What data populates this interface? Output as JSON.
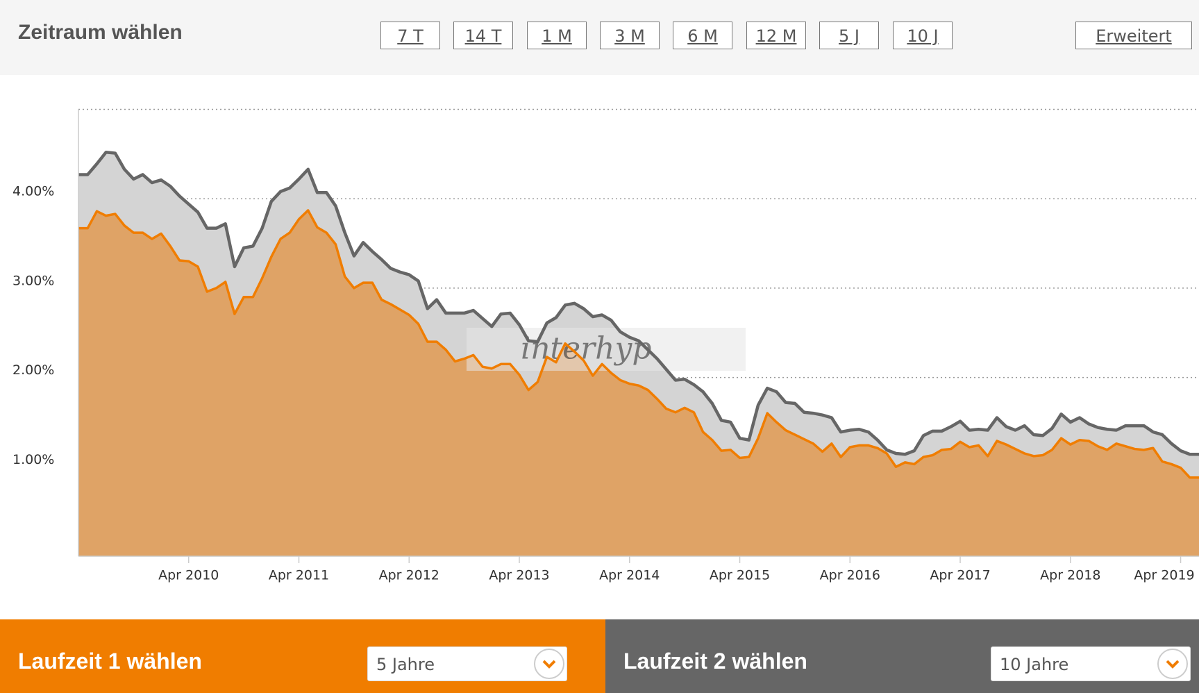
{
  "header": {
    "title": "Zeitraum wählen",
    "buttons": [
      "7 T",
      "14 T",
      "1 M",
      "3 M",
      "6 M",
      "12 M",
      "5 J",
      "10 J"
    ],
    "advanced": "Erweitert"
  },
  "chart_data": {
    "type": "area",
    "watermark": "interhyp",
    "x": [
      null,
      null,
      null,
      null,
      null,
      null,
      null,
      null,
      null,
      null,
      null,
      null,
      "Apr 2010",
      null,
      null,
      null,
      null,
      null,
      null,
      null,
      null,
      null,
      null,
      null,
      "Apr 2011",
      null,
      null,
      null,
      null,
      null,
      null,
      null,
      null,
      null,
      null,
      null,
      "Apr 2012",
      null,
      null,
      null,
      null,
      null,
      null,
      null,
      null,
      null,
      null,
      null,
      "Apr 2013",
      null,
      null,
      null,
      null,
      null,
      null,
      null,
      null,
      null,
      null,
      null,
      "Apr 2014",
      null,
      null,
      null,
      null,
      null,
      null,
      null,
      null,
      null,
      null,
      null,
      "Apr 2015",
      null,
      null,
      null,
      null,
      null,
      null,
      null,
      null,
      null,
      null,
      null,
      "Apr 2016",
      null,
      null,
      null,
      null,
      null,
      null,
      null,
      null,
      null,
      null,
      null,
      "Apr 2017",
      null,
      null,
      null,
      null,
      null,
      null,
      null,
      null,
      null,
      null,
      null,
      "Apr 2018",
      null,
      null,
      null,
      null,
      null,
      null,
      null,
      null,
      null,
      null,
      null,
      "Apr 2019",
      null,
      null
    ],
    "ylim": [
      0,
      5
    ],
    "yticks": [
      {
        "value": 1,
        "label": "1.00%"
      },
      {
        "value": 2,
        "label": "2.00%"
      },
      {
        "value": 3,
        "label": "3.00%"
      },
      {
        "value": 4,
        "label": "4.00%"
      }
    ],
    "grid": true,
    "series": [
      {
        "name": "10 Jahre",
        "color": "#666666",
        "fill": "#d4d4d4",
        "values": [
          4.27,
          4.27,
          4.39,
          4.52,
          4.51,
          4.33,
          4.22,
          4.27,
          4.18,
          4.21,
          4.14,
          4.03,
          3.94,
          3.85,
          3.67,
          3.67,
          3.72,
          3.24,
          3.45,
          3.47,
          3.67,
          3.97,
          4.08,
          4.12,
          4.22,
          4.33,
          4.07,
          4.07,
          3.92,
          3.62,
          3.36,
          3.51,
          3.41,
          3.32,
          3.22,
          3.18,
          3.15,
          3.08,
          2.77,
          2.87,
          2.72,
          2.72,
          2.72,
          2.75,
          2.66,
          2.57,
          2.71,
          2.72,
          2.59,
          2.41,
          2.4,
          2.61,
          2.67,
          2.81,
          2.83,
          2.77,
          2.68,
          2.7,
          2.64,
          2.51,
          2.45,
          2.41,
          2.31,
          2.21,
          2.09,
          1.97,
          1.98,
          1.92,
          1.84,
          1.71,
          1.52,
          1.5,
          1.32,
          1.3,
          1.69,
          1.88,
          1.84,
          1.72,
          1.71,
          1.61,
          1.6,
          1.58,
          1.55,
          1.39,
          1.41,
          1.42,
          1.39,
          1.3,
          1.19,
          1.15,
          1.14,
          1.18,
          1.35,
          1.4,
          1.4,
          1.45,
          1.51,
          1.41,
          1.42,
          1.41,
          1.55,
          1.45,
          1.41,
          1.46,
          1.36,
          1.35,
          1.43,
          1.59,
          1.5,
          1.55,
          1.48,
          1.44,
          1.42,
          1.41,
          1.46,
          1.46,
          1.46,
          1.39,
          1.36,
          1.26,
          1.18,
          1.14,
          1.14
        ]
      },
      {
        "name": "5 Jahre",
        "color": "#f07d00",
        "fill": "#dfa366",
        "values": [
          3.67,
          3.67,
          3.86,
          3.81,
          3.83,
          3.7,
          3.62,
          3.62,
          3.55,
          3.61,
          3.47,
          3.31,
          3.3,
          3.24,
          2.96,
          3.0,
          3.07,
          2.71,
          2.9,
          2.9,
          3.11,
          3.35,
          3.55,
          3.62,
          3.77,
          3.87,
          3.68,
          3.62,
          3.49,
          3.13,
          3.0,
          3.06,
          3.06,
          2.87,
          2.82,
          2.76,
          2.7,
          2.6,
          2.4,
          2.4,
          2.31,
          2.18,
          2.21,
          2.25,
          2.12,
          2.1,
          2.15,
          2.15,
          2.03,
          1.86,
          1.95,
          2.23,
          2.17,
          2.38,
          2.29,
          2.19,
          2.02,
          2.15,
          2.05,
          1.97,
          1.93,
          1.91,
          1.86,
          1.76,
          1.65,
          1.61,
          1.66,
          1.61,
          1.39,
          1.3,
          1.18,
          1.19,
          1.1,
          1.11,
          1.32,
          1.6,
          1.5,
          1.41,
          1.36,
          1.31,
          1.26,
          1.17,
          1.26,
          1.11,
          1.22,
          1.24,
          1.24,
          1.21,
          1.15,
          1.0,
          1.05,
          1.03,
          1.11,
          1.13,
          1.19,
          1.2,
          1.28,
          1.22,
          1.24,
          1.12,
          1.29,
          1.25,
          1.2,
          1.15,
          1.12,
          1.13,
          1.19,
          1.32,
          1.25,
          1.3,
          1.29,
          1.23,
          1.19,
          1.26,
          1.23,
          1.2,
          1.19,
          1.21,
          1.06,
          1.03,
          0.99,
          0.88,
          0.88
        ]
      }
    ]
  },
  "selectors": [
    {
      "title": "Laufzeit 1 wählen",
      "value": "5 Jahre"
    },
    {
      "title": "Laufzeit 2 wählen",
      "value": "10 Jahre"
    }
  ]
}
